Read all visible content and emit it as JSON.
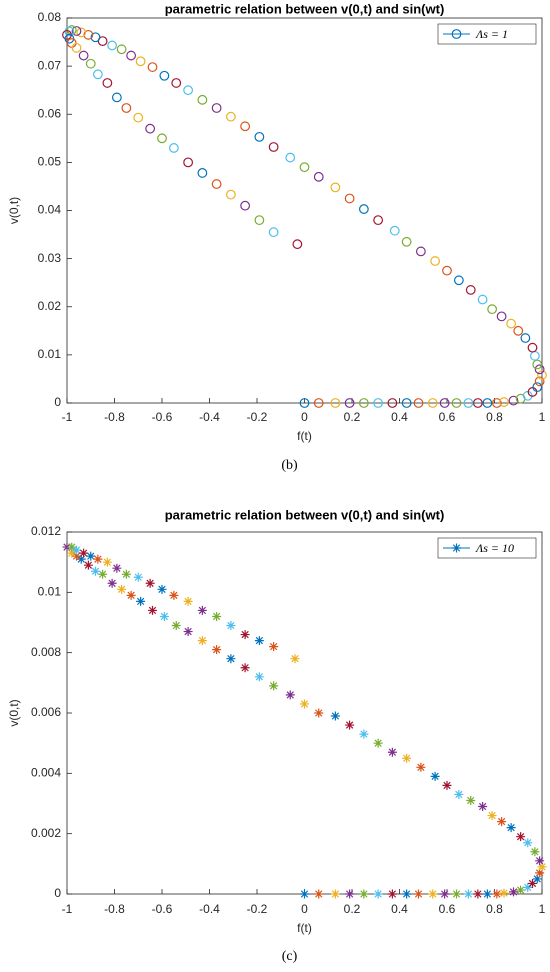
{
  "chart_data": [
    {
      "type": "scatter",
      "title": "parametric relation between v(0,t) and sin(wt)",
      "xlabel": "f(t)",
      "ylabel": "v(0,t)",
      "caption": "(b)",
      "xlim": [
        -1,
        1
      ],
      "xticks": [
        -1,
        -0.8,
        -0.6,
        -0.4,
        -0.2,
        0,
        0.2,
        0.4,
        0.6,
        0.8,
        1
      ],
      "ylim": [
        0,
        0.08
      ],
      "yticks": [
        0,
        0.01,
        0.02,
        0.03,
        0.04,
        0.05,
        0.06,
        0.07,
        0.08
      ],
      "legend": "northeast",
      "colors": [
        "#0072BD",
        "#D95319",
        "#EDB120",
        "#7E2F8E",
        "#77AC30",
        "#4DBEEE",
        "#A2142F"
      ],
      "series": [
        {
          "name": "Λs = 1",
          "marker": "circle",
          "x": [
            0,
            0.06,
            0.13,
            0.19,
            0.25,
            0.31,
            0.37,
            0.43,
            0.48,
            0.54,
            0.59,
            0.64,
            0.69,
            0.73,
            0.77,
            0.81,
            0.84,
            0.88,
            0.91,
            0.94,
            0.96,
            0.98,
            0.99,
            1,
            0.99,
            0.98,
            0.97,
            0.96,
            0.93,
            0.9,
            0.87,
            0.83,
            0.79,
            0.75,
            0.7,
            0.65,
            0.6,
            0.55,
            0.49,
            0.43,
            0.38,
            0.31,
            0.25,
            0.19,
            0.13,
            0.06,
            0,
            -0.06,
            -0.13,
            -0.19,
            -0.25,
            -0.31,
            -0.37,
            -0.43,
            -0.49,
            -0.54,
            -0.59,
            -0.64,
            -0.69,
            -0.73,
            -0.77,
            -0.81,
            -0.85,
            -0.88,
            -0.91,
            -0.94,
            -0.96,
            -0.98,
            -0.99,
            -1,
            -0.99,
            -0.98,
            -0.96,
            -0.93,
            -0.9,
            -0.87,
            -0.83,
            -0.79,
            -0.75,
            -0.7,
            -0.65,
            -0.6,
            -0.55,
            -0.49,
            -0.43,
            -0.37,
            -0.31,
            -0.25,
            -0.19,
            -0.13,
            -0.03
          ],
          "values": [
            0,
            0,
            0,
            0,
            0,
            0,
            0,
            0,
            0,
            0,
            0,
            0,
            0,
            0,
            0,
            0,
            0.0002,
            0.0005,
            0.0009,
            0.0015,
            0.0023,
            0.0033,
            0.0045,
            0.0058,
            0.007,
            0.008,
            0.0098,
            0.0115,
            0.0135,
            0.015,
            0.0165,
            0.018,
            0.0195,
            0.0215,
            0.0235,
            0.0255,
            0.0275,
            0.0295,
            0.0315,
            0.0335,
            0.0358,
            0.038,
            0.0403,
            0.0425,
            0.0448,
            0.047,
            0.049,
            0.051,
            0.0532,
            0.0553,
            0.0575,
            0.0595,
            0.0613,
            0.063,
            0.065,
            0.0665,
            0.068,
            0.0698,
            0.071,
            0.0722,
            0.0735,
            0.0743,
            0.0752,
            0.076,
            0.0765,
            0.077,
            0.0773,
            0.0775,
            0.0772,
            0.0765,
            0.0757,
            0.0748,
            0.0738,
            0.0722,
            0.0705,
            0.0683,
            0.0665,
            0.0635,
            0.0613,
            0.0593,
            0.057,
            0.055,
            0.053,
            0.05,
            0.0478,
            0.0455,
            0.0433,
            0.041,
            0.038,
            0.0355,
            0.033
          ]
        }
      ]
    },
    {
      "type": "scatter",
      "title": "parametric relation between v(0,t) and sin(wt)",
      "xlabel": "f(t)",
      "ylabel": "v(0,t)",
      "caption": "(c)",
      "xlim": [
        -1,
        1
      ],
      "xticks": [
        -1,
        -0.8,
        -0.6,
        -0.4,
        -0.2,
        0,
        0.2,
        0.4,
        0.6,
        0.8,
        1
      ],
      "ylim": [
        0,
        0.012
      ],
      "yticks": [
        0,
        0.002,
        0.004,
        0.006,
        0.008,
        0.01,
        0.012
      ],
      "legend": "northeast",
      "colors": [
        "#0072BD",
        "#D95319",
        "#EDB120",
        "#7E2F8E",
        "#77AC30",
        "#4DBEEE",
        "#A2142F"
      ],
      "series": [
        {
          "name": "Λs = 10",
          "marker": "star",
          "x": [
            0,
            0.06,
            0.13,
            0.19,
            0.25,
            0.31,
            0.37,
            0.43,
            0.48,
            0.54,
            0.59,
            0.64,
            0.69,
            0.73,
            0.77,
            0.81,
            0.84,
            0.88,
            0.91,
            0.94,
            0.96,
            0.98,
            0.99,
            1,
            0.99,
            0.97,
            0.94,
            0.91,
            0.87,
            0.83,
            0.79,
            0.75,
            0.7,
            0.65,
            0.6,
            0.55,
            0.49,
            0.43,
            0.37,
            0.31,
            0.25,
            0.19,
            0.13,
            0.06,
            0,
            -0.06,
            -0.13,
            -0.19,
            -0.25,
            -0.31,
            -0.37,
            -0.43,
            -0.49,
            -0.54,
            -0.59,
            -0.64,
            -0.69,
            -0.73,
            -0.77,
            -0.81,
            -0.85,
            -0.88,
            -0.91,
            -0.94,
            -0.96,
            -0.98,
            -1,
            -0.98,
            -0.96,
            -0.93,
            -0.9,
            -0.87,
            -0.83,
            -0.79,
            -0.75,
            -0.7,
            -0.65,
            -0.6,
            -0.55,
            -0.49,
            -0.43,
            -0.37,
            -0.31,
            -0.25,
            -0.19,
            -0.13,
            -0.04
          ],
          "values": [
            0,
            0,
            0,
            0,
            0,
            0,
            0,
            0,
            0,
            0,
            0,
            0,
            0,
            0,
            0,
            0,
            3e-05,
            7e-05,
            0.00013,
            0.00022,
            0.00035,
            0.0005,
            0.0007,
            0.0009,
            0.0011,
            0.0014,
            0.0017,
            0.0019,
            0.0022,
            0.0024,
            0.0026,
            0.0029,
            0.0031,
            0.0033,
            0.0036,
            0.0039,
            0.0042,
            0.0045,
            0.0047,
            0.005,
            0.0053,
            0.0056,
            0.0059,
            0.006,
            0.0063,
            0.0066,
            0.0069,
            0.0072,
            0.0075,
            0.0078,
            0.0081,
            0.0084,
            0.0087,
            0.0089,
            0.0092,
            0.0094,
            0.0097,
            0.0099,
            0.0101,
            0.0103,
            0.0106,
            0.0107,
            0.0109,
            0.0111,
            0.0112,
            0.0113,
            0.0115,
            0.0115,
            0.0114,
            0.0113,
            0.0112,
            0.0111,
            0.011,
            0.0108,
            0.0106,
            0.0105,
            0.0103,
            0.0101,
            0.0099,
            0.0097,
            0.0094,
            0.0092,
            0.0089,
            0.0086,
            0.0084,
            0.0082,
            0.0078
          ]
        }
      ]
    }
  ]
}
